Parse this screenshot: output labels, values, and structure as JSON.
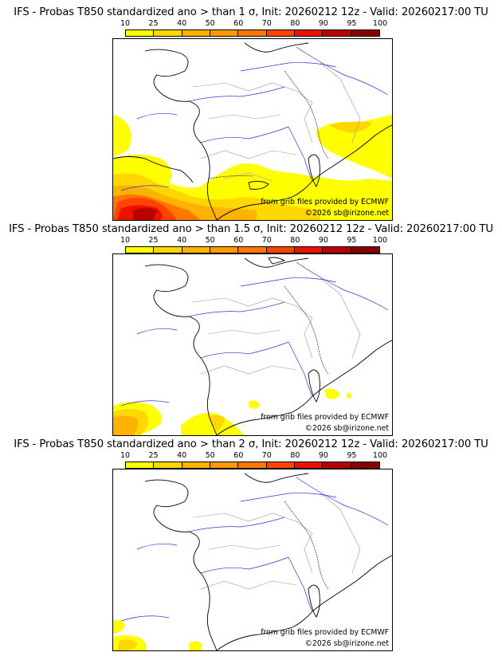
{
  "legend": {
    "ticks": [
      "10",
      "25",
      "40",
      "50",
      "60",
      "70",
      "80",
      "90",
      "95",
      "100"
    ],
    "colors": [
      "#ffff00",
      "#ffd700",
      "#ffb300",
      "#ff9900",
      "#ff7700",
      "#ff4400",
      "#ee1100",
      "#bb0000",
      "#880000"
    ]
  },
  "panels": [
    {
      "title": "IFS - Probas T850  standardized ano > than 1 σ, Init: 20260212 12z - Valid: 20260217:00 TU",
      "credit_line1": "from grib files provided by ECMWF",
      "credit_line2": "©2026 sb@irizone.net"
    },
    {
      "title": "IFS - Probas T850  standardized ano > than 1.5 σ, Init: 20260212 12z - Valid: 20260217:00 TU",
      "credit_line1": "from grib files provided by ECMWF",
      "credit_line2": "©2026 sb@irizone.net"
    },
    {
      "title": "IFS - Probas T850  standardized ano > than 2 σ, Init: 20260212 12z - Valid: 20260217:00 TU",
      "credit_line1": "from grib files provided by ECMWF",
      "credit_line2": "©2026 sb@irizone.net"
    }
  ]
}
